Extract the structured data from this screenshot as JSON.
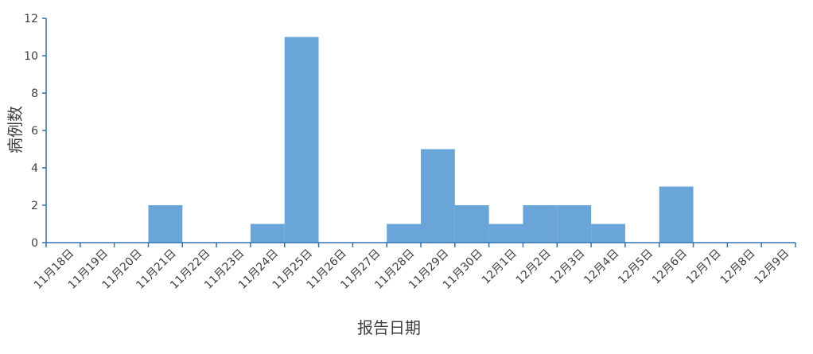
{
  "chart_data": {
    "type": "bar",
    "title": "",
    "xlabel": "报告日期",
    "ylabel": "病例数",
    "ylim": [
      0,
      12
    ],
    "yticks": [
      0,
      2,
      4,
      6,
      8,
      10,
      12
    ],
    "grid": false,
    "legend": "none",
    "bar_color": "#6aa5d9",
    "axis_color": "#2e75b6",
    "categories": [
      "11月18日",
      "11月19日",
      "11月20日",
      "11月21日",
      "11月22日",
      "11月23日",
      "11月24日",
      "11月25日",
      "11月26日",
      "11月27日",
      "11月28日",
      "11月29日",
      "11月30日",
      "12月1日",
      "12月2日",
      "12月3日",
      "12月4日",
      "12月5日",
      "12月6日",
      "12月7日",
      "12月8日",
      "12月9日"
    ],
    "values": [
      0,
      0,
      0,
      2,
      0,
      0,
      1,
      11,
      0,
      0,
      1,
      5,
      2,
      1,
      2,
      2,
      1,
      0,
      3,
      0,
      0,
      0
    ]
  }
}
